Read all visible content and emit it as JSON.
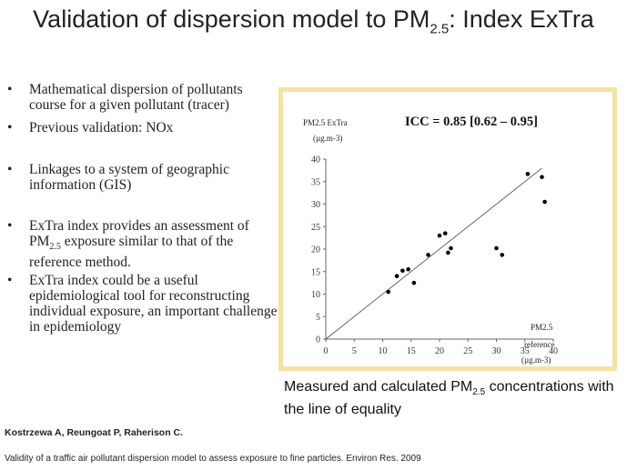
{
  "slide": {
    "title_main": "Validation of dispersion model to PM",
    "title_sub": "2.5",
    "title_rest": ": Index ExTra",
    "bullet_symbol": "•",
    "bullets": [
      {
        "text": "Mathematical dispersion of pollutants course for a given pollutant (tracer)"
      },
      {
        "text": "Previous validation: NOx"
      },
      {
        "text": "Linkages to a system of geographic information (GIS)"
      },
      {
        "pre": "ExTra index provides an assessment of PM",
        "sub": "2.5",
        "post": " exposure similar to that of the reference method."
      },
      {
        "text": "ExTra index could be a useful epidemiological tool for reconstructing individual exposure, an important challenge in epidemiology"
      }
    ],
    "caption_pre": "Measured and calculated PM",
    "caption_sub": "2.5",
    "caption_post": " concentrations with the line of equality",
    "authors": "Kostrzewa A, Reungoat P, Raherison C.",
    "reference": "Validity of a traffic air pollutant dispersion model to assess exposure to fine particles. Environ Res. 2009"
  },
  "chart_data": {
    "type": "scatter",
    "annotation": "ICC = 0.85 [0.62 – 0.95]",
    "ylabel_line1": "PM2.5 ExTra",
    "ylabel_line2": "(µg.m-3)",
    "xlabel_line1": "PM2.5",
    "xlabel_line2": "reference",
    "xlabel_line3": "(µg.m-3)",
    "xlim": [
      0,
      40
    ],
    "ylim": [
      0,
      40
    ],
    "xticks": [
      0,
      5,
      10,
      15,
      20,
      25,
      30,
      35,
      40
    ],
    "yticks": [
      0,
      5,
      10,
      15,
      20,
      25,
      30,
      35,
      40
    ],
    "grid": false,
    "line_of_equality": true,
    "x": [
      11,
      12.5,
      13.5,
      14.5,
      15.5,
      18,
      20,
      21,
      21.5,
      22,
      30,
      31,
      35.5,
      38,
      38.5
    ],
    "y": [
      10.5,
      14,
      15.2,
      15.5,
      12.5,
      18.7,
      23,
      23.5,
      19.2,
      20.2,
      20.2,
      18.7,
      36.7,
      36,
      30.5
    ]
  },
  "colors": {
    "frame": "#f3e3a3",
    "text": "#222222",
    "point": "#000000"
  }
}
